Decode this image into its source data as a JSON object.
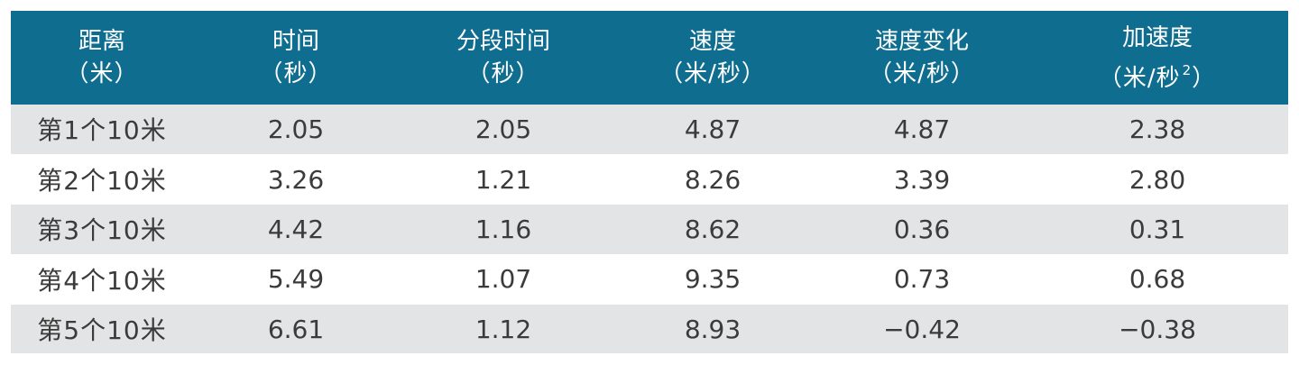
{
  "colors": {
    "header_bg": "#0f6e90",
    "header_text": "#ffffff",
    "row_shaded": "#e3e4e5",
    "row_plain": "#ffffff",
    "cell_text": "#3b3b3b"
  },
  "table": {
    "headers": [
      {
        "title": "距离",
        "unit": "（米）",
        "unit_sup": ""
      },
      {
        "title": "时间",
        "unit": "（秒）",
        "unit_sup": ""
      },
      {
        "title": "分段时间",
        "unit": "（秒）",
        "unit_sup": ""
      },
      {
        "title": "速度",
        "unit": "（米/秒）",
        "unit_sup": ""
      },
      {
        "title": "速度变化",
        "unit": "（米/秒）",
        "unit_sup": ""
      },
      {
        "title": "加速度",
        "unit": "（米/秒",
        "unit_sup": "2",
        "unit_tail": "）"
      }
    ],
    "rows": [
      [
        "第1个10米",
        "2.05",
        "2.05",
        "4.87",
        "4.87",
        "2.38"
      ],
      [
        "第2个10米",
        "3.26",
        "1.21",
        "8.26",
        "3.39",
        "2.80"
      ],
      [
        "第3个10米",
        "4.42",
        "1.16",
        "8.62",
        "0.36",
        "0.31"
      ],
      [
        "第4个10米",
        "5.49",
        "1.07",
        "9.35",
        "0.73",
        "0.68"
      ],
      [
        "第5个10米",
        "6.61",
        "1.12",
        "8.93",
        "−0.42",
        "−0.38"
      ]
    ]
  }
}
